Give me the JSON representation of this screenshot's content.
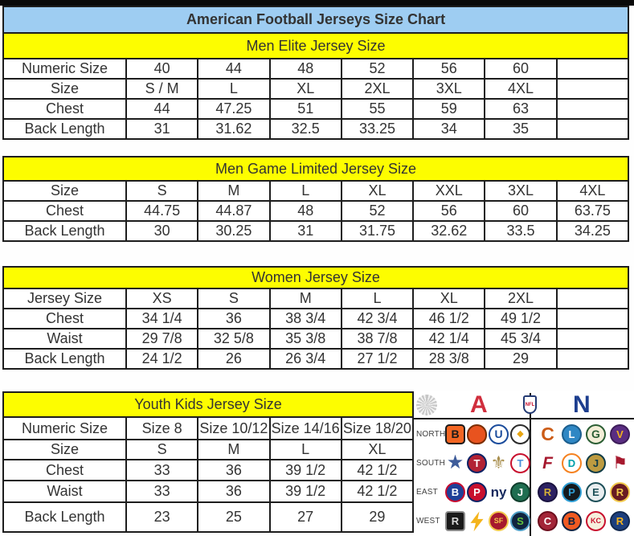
{
  "page": {
    "title": "American Football Jerseys Size Chart"
  },
  "colors": {
    "title_bar_bg": "#9ecdf2",
    "section_header_bg": "#fdfd00",
    "table_border": "#1d1d1d",
    "afc_red": "#d02e3d",
    "nfc_blue": "#1d3e8f"
  },
  "tables": [
    {
      "id": "men-elite",
      "title": "Men Elite Jersey Size",
      "rows": [
        [
          "Numeric Size",
          "40",
          "44",
          "48",
          "52",
          "56",
          "60",
          ""
        ],
        [
          "Size",
          "S / M",
          "L",
          "XL",
          "2XL",
          "3XL",
          "4XL",
          ""
        ],
        [
          "Chest",
          "44",
          "47.25",
          "51",
          "55",
          "59",
          "63",
          ""
        ],
        [
          "Back Length",
          "31",
          "31.62",
          "32.5",
          "33.25",
          "34",
          "35",
          ""
        ]
      ]
    },
    {
      "id": "men-game-limited",
      "title": "Men Game Limited Jersey Size",
      "rows": [
        [
          "Size",
          "S",
          "M",
          "L",
          "XL",
          "XXL",
          "3XL",
          "4XL"
        ],
        [
          "Chest",
          "44.75",
          "44.87",
          "48",
          "52",
          "56",
          "60",
          "63.75"
        ],
        [
          "Back Length",
          "30",
          "30.25",
          "31",
          "31.75",
          "32.62",
          "33.5",
          "34.25"
        ]
      ]
    },
    {
      "id": "women",
      "title": "Women Jersey Size",
      "rows": [
        [
          "Jersey Size",
          "XS",
          "S",
          "M",
          "L",
          "XL",
          "2XL",
          ""
        ],
        [
          "Chest",
          "34 1/4",
          "36",
          "38 3/4",
          "42 3/4",
          "46 1/2",
          "49 1/2",
          ""
        ],
        [
          "Waist",
          "29 7/8",
          "32 5/8",
          "35 3/8",
          "38 7/8",
          "42 1/4",
          "45 3/4",
          ""
        ],
        [
          "Back Length",
          "24 1/2",
          "26",
          "26 3/4",
          "27 1/2",
          "28 3/8",
          "29",
          ""
        ]
      ]
    },
    {
      "id": "youth-kids",
      "title": "Youth Kids Jersey Size",
      "small_first_row": true,
      "rows": [
        [
          "Numeric Size",
          "Size 8",
          "Size 10/12",
          "Size 14/16",
          "Size 18/20"
        ],
        [
          "Size",
          "S",
          "M",
          "L",
          "XL"
        ],
        [
          "Chest",
          "33",
          "36",
          "39 1/2",
          "42 1/2"
        ],
        [
          "Waist",
          "33",
          "36",
          "39 1/2",
          "42 1/2"
        ],
        [
          "Back Length",
          "23",
          "25",
          "27",
          "29"
        ]
      ]
    }
  ],
  "nfl_panel": {
    "afc_label": "A",
    "nfl_label": "NFL",
    "nfc_label": "N",
    "divisions": [
      {
        "label": "NORTH",
        "afc": [
          {
            "name": "bengals-icon",
            "glyph": "B",
            "bg": "#f26522",
            "fg": "#1a1a1a",
            "bd": "#1a1a1a",
            "rad": "5px",
            "fs": 14
          },
          {
            "name": "browns-helmet-icon",
            "glyph": "",
            "bg": "#e8531f",
            "fg": "#ffffff",
            "bd": "#7a2d00",
            "rad": "50% 50% 45% 45%",
            "fs": 12
          },
          {
            "name": "colts-horseshoe-icon",
            "glyph": "U",
            "bg": "#ffffff",
            "fg": "#1b4c9c",
            "bd": "#1b4c9c",
            "rad": "50%",
            "fs": 14
          },
          {
            "name": "steelers-icon",
            "glyph": "◆",
            "bg": "#ffffff",
            "fg": "#e8a511",
            "bd": "#2b2b2b",
            "rad": "50%",
            "fs": 11
          }
        ],
        "nfc": [
          {
            "name": "bears-icon",
            "glyph": "C",
            "bg": "transparent",
            "fg": "#cc5c17",
            "bd": "",
            "rad": "0",
            "fs": 23
          },
          {
            "name": "lions-icon",
            "glyph": "L",
            "bg": "#2f87c4",
            "fg": "#ffffff",
            "bd": "#1b5e8e",
            "rad": "50%",
            "fs": 13
          },
          {
            "name": "packers-icon",
            "glyph": "G",
            "bg": "#f3eed7",
            "fg": "#2b5e34",
            "bd": "#2b5e34",
            "rad": "50%",
            "fs": 14
          },
          {
            "name": "vikings-icon",
            "glyph": "V",
            "bg": "#5a2d82",
            "fg": "#f2b21d",
            "bd": "#3d1d59",
            "rad": "50%",
            "fs": 13
          }
        ]
      },
      {
        "label": "SOUTH",
        "afc": [
          {
            "name": "cowboys-star-icon",
            "glyph": "★",
            "bg": "transparent",
            "fg": "#3e5c9a",
            "bd": "",
            "rad": "0",
            "fs": 24
          },
          {
            "name": "texans-icon",
            "glyph": "T",
            "bg": "#b22234",
            "fg": "#ffffff",
            "bd": "#0b2265",
            "rad": "50%",
            "fs": 13
          },
          {
            "name": "saints-fleur-icon",
            "glyph": "⚜",
            "bg": "transparent",
            "fg": "#a98f4e",
            "bd": "",
            "rad": "0",
            "fs": 22
          },
          {
            "name": "titans-icon",
            "glyph": "T",
            "bg": "#ffffff",
            "fg": "#4b92db",
            "bd": "#c8102e",
            "rad": "50%",
            "fs": 13
          }
        ],
        "nfc": [
          {
            "name": "falcons-icon",
            "glyph": "F",
            "bg": "transparent",
            "fg": "#a6192e",
            "bd": "",
            "rad": "0",
            "fs": 21,
            "italic": true
          },
          {
            "name": "dolphins-icon",
            "glyph": "D",
            "bg": "#ffffff",
            "fg": "#00a0ab",
            "bd": "#f58220",
            "rad": "50%",
            "fs": 13
          },
          {
            "name": "jaguars-icon",
            "glyph": "J",
            "bg": "#bd9b41",
            "fg": "#103c47",
            "bd": "#103c47",
            "rad": "50%",
            "fs": 13
          },
          {
            "name": "buccaneers-flag-icon",
            "glyph": "⚑",
            "bg": "transparent",
            "fg": "#a6192e",
            "bd": "",
            "rad": "0",
            "fs": 21
          }
        ]
      },
      {
        "label": "EAST",
        "afc": [
          {
            "name": "bills-icon",
            "glyph": "B",
            "bg": "#1f4098",
            "fg": "#ffffff",
            "bd": "#c60c30",
            "rad": "50%",
            "fs": 13
          },
          {
            "name": "patriots-icon",
            "glyph": "P",
            "bg": "#c8102e",
            "fg": "#ffffff",
            "bd": "#0b2265",
            "rad": "50%",
            "fs": 13
          },
          {
            "name": "giants-ny-icon",
            "glyph": "ny",
            "bg": "transparent",
            "fg": "#16295e",
            "bd": "",
            "rad": "0",
            "fs": 17
          },
          {
            "name": "jets-icon",
            "glyph": "J",
            "bg": "#1f6e51",
            "fg": "#ffffff",
            "bd": "#0f3d2c",
            "rad": "50%",
            "fs": 13
          }
        ],
        "nfc": [
          {
            "name": "ravens-icon",
            "glyph": "R",
            "bg": "#2c2162",
            "fg": "#d4af37",
            "bd": "#1a1340",
            "rad": "50%",
            "fs": 13
          },
          {
            "name": "panthers-icon",
            "glyph": "P",
            "bg": "#151a1e",
            "fg": "#2f9fd6",
            "bd": "#2f9fd6",
            "rad": "50%",
            "fs": 13
          },
          {
            "name": "eagles-icon",
            "glyph": "E",
            "bg": "#e9eef0",
            "fg": "#1d4f58",
            "bd": "#1d4f58",
            "rad": "50%",
            "fs": 13
          },
          {
            "name": "redskins-icon",
            "glyph": "R",
            "bg": "#681a22",
            "fg": "#f2c94c",
            "bd": "#f2c94c",
            "rad": "50%",
            "fs": 13
          }
        ]
      },
      {
        "label": "WEST",
        "afc": [
          {
            "name": "raiders-shield-icon",
            "glyph": "R",
            "bg": "#1a1a1a",
            "fg": "#d8d8d8",
            "bd": "#8a8a8a",
            "rad": "4px",
            "fs": 13
          },
          {
            "name": "chargers-bolt-icon",
            "glyph": "",
            "bg": "#f4b41c",
            "fg": "#f4b41c",
            "bd": "",
            "rad": "0",
            "fs": 13,
            "clip": "polygon(62% 0, 18% 58%, 44% 58%, 34% 100%, 82% 38%, 54% 38%)"
          },
          {
            "name": "sf-49ers-icon",
            "glyph": "SF",
            "bg": "#a6192e",
            "fg": "#f2c94c",
            "bd": "#f2c94c",
            "rad": "50%",
            "fs": 9
          },
          {
            "name": "seahawks-icon",
            "glyph": "S",
            "bg": "#10243f",
            "fg": "#63c23c",
            "bd": "#4fa0c8",
            "rad": "50%",
            "fs": 13
          }
        ],
        "nfc": [
          {
            "name": "cardinals-icon",
            "glyph": "C",
            "bg": "#a32638",
            "fg": "#ffffff",
            "bd": "#6e0f1e",
            "rad": "50%",
            "fs": 13
          },
          {
            "name": "broncos-icon",
            "glyph": "B",
            "bg": "#f05a22",
            "fg": "#0b2240",
            "bd": "#0b2240",
            "rad": "50%",
            "fs": 13
          },
          {
            "name": "chiefs-icon",
            "glyph": "KC",
            "bg": "#f6efdd",
            "fg": "#c8102e",
            "bd": "#c8102e",
            "rad": "50%",
            "fs": 9
          },
          {
            "name": "rams-icon",
            "glyph": "R",
            "bg": "#1c3e7d",
            "fg": "#f2b21d",
            "bd": "#12294f",
            "rad": "50%",
            "fs": 13
          }
        ]
      }
    ]
  }
}
